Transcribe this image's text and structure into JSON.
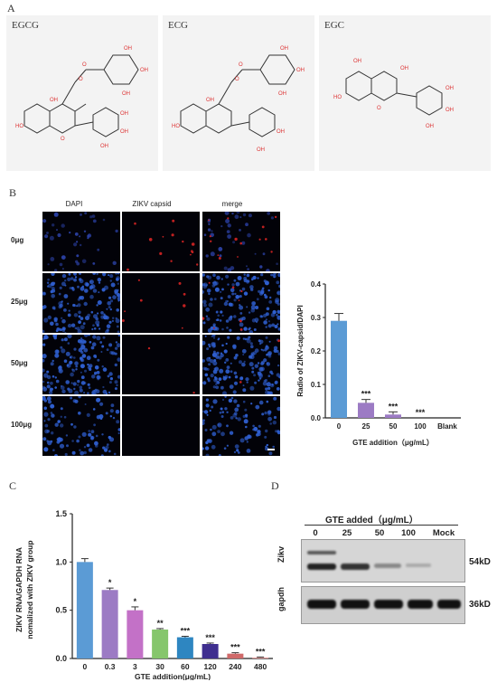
{
  "panels": {
    "A": "A",
    "B": "B",
    "C": "C",
    "D": "D"
  },
  "molecules": [
    "EGCG",
    "ECG",
    "EGC"
  ],
  "microscopy": {
    "columns": [
      "DAPI",
      "ZIKV capsid",
      "merge"
    ],
    "rows": [
      "0μg",
      "25μg",
      "50μg",
      "100μg"
    ]
  },
  "colors": {
    "b_bar1": "#5b9bd5",
    "b_bar2": "#9c7bc4",
    "c_bars": [
      "#5b9bd5",
      "#9c7bc4",
      "#c371c7",
      "#86c66c",
      "#2e86c1",
      "#3f2f8f",
      "#d06a6a",
      "#e59a9a"
    ]
  },
  "chart_data": [
    {
      "type": "bar",
      "categories": [
        "0",
        "25",
        "50",
        "100",
        "Blank"
      ],
      "values": [
        0.29,
        0.045,
        0.01,
        0.0,
        0.0
      ],
      "errors": [
        0.022,
        0.01,
        0.008,
        0.0,
        0.0
      ],
      "significance": [
        "",
        "***",
        "***",
        "***",
        ""
      ],
      "xlabel": "GTE addition（μg/mL）",
      "ylabel": "Radio of ZIKV-capsid/DAPI",
      "ylim": [
        0,
        0.4
      ],
      "yticks": [
        "0.0",
        "0.1",
        "0.2",
        "0.3",
        "0.4"
      ]
    },
    {
      "type": "bar",
      "categories": [
        "0",
        "0.3",
        "3",
        "30",
        "60",
        "120",
        "240",
        "480"
      ],
      "values": [
        1.0,
        0.71,
        0.5,
        0.3,
        0.22,
        0.15,
        0.05,
        0.01
      ],
      "errors": [
        0.035,
        0.02,
        0.035,
        0.01,
        0.01,
        0.01,
        0.01,
        0.005
      ],
      "significance": [
        "",
        "*",
        "*",
        "**",
        "***",
        "***",
        "***",
        "***"
      ],
      "xlabel": "GTE addition(μg/mL)",
      "ylabel": "ZIKV RNA/GAPDH RNA",
      "ylabel2": "nomalized with ZIKV group",
      "ylim": [
        0,
        1.5
      ],
      "yticks": [
        "0.0",
        "0.5",
        "1.0",
        "1.5"
      ]
    }
  ],
  "western": {
    "title": "GTE added（μg/mL）",
    "lanes": [
      "0",
      "25",
      "50",
      "100",
      "Mock"
    ],
    "rows": [
      {
        "label": "Zikv",
        "size": "54kD"
      },
      {
        "label": "gapdh",
        "size": "36kD"
      }
    ]
  }
}
